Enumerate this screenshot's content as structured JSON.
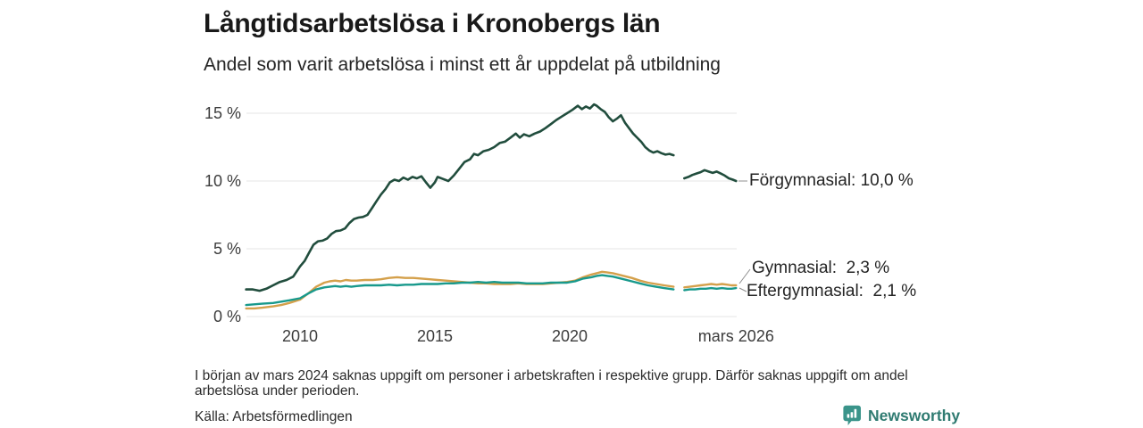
{
  "header": {
    "title": "Långtidsarbetslösa i Kronobergs län",
    "subtitle": "Andel som varit arbetslösa i minst ett år uppdelat på utbildning"
  },
  "footer": {
    "note": "I början av mars 2024 saknas uppgift om personer i arbetskraften i respektive grupp. Därför saknas uppgift om andel arbetslösa under perioden.",
    "source": "Källa: Arbetsförmedlingen"
  },
  "branding": {
    "name": "Newsworthy",
    "icon": "newsworthy-bubble-barchart-icon",
    "text_color": "#2f7b71",
    "icon_color": "#3a948a"
  },
  "chart_data": {
    "type": "line",
    "title": "Långtidsarbetslösa i Kronobergs län",
    "subtitle": "Andel som varit arbetslösa i minst ett år uppdelat på utbildning",
    "unit": "%",
    "grid": "horizontal-only",
    "legend_position": "right-of-line-ends",
    "data_gap_note": "values missing around March 2024",
    "x_axis": {
      "label": "",
      "range_years": [
        2008.0,
        2026.25
      ],
      "ticks": [
        {
          "label": "2010",
          "year": 2010
        },
        {
          "label": "2015",
          "year": 2015
        },
        {
          "label": "2020",
          "year": 2020
        },
        {
          "label": "mars 2026",
          "year": 2026.17
        }
      ]
    },
    "y_axis": {
      "label": "",
      "range": [
        0,
        16
      ],
      "ticks": [
        {
          "label": "0 %",
          "value": 0
        },
        {
          "label": "5 %",
          "value": 5
        },
        {
          "label": "10 %",
          "value": 10
        },
        {
          "label": "15 %",
          "value": 15
        }
      ]
    },
    "series": [
      {
        "id": "forgymnasial",
        "name": "Förgymnasial",
        "end_value_label": "10,0 %",
        "display_label": "Förgymnasial: 10,0 %",
        "color": "#214d3d",
        "width": 2.6,
        "points": [
          [
            2008.0,
            2.0
          ],
          [
            2008.25,
            2.0
          ],
          [
            2008.5,
            1.9
          ],
          [
            2008.75,
            2.05
          ],
          [
            2009.0,
            2.3
          ],
          [
            2009.25,
            2.55
          ],
          [
            2009.5,
            2.7
          ],
          [
            2009.75,
            2.95
          ],
          [
            2010.0,
            3.7
          ],
          [
            2010.17,
            4.1
          ],
          [
            2010.33,
            4.7
          ],
          [
            2010.5,
            5.3
          ],
          [
            2010.67,
            5.55
          ],
          [
            2010.83,
            5.6
          ],
          [
            2011.0,
            5.75
          ],
          [
            2011.17,
            6.1
          ],
          [
            2011.33,
            6.3
          ],
          [
            2011.5,
            6.35
          ],
          [
            2011.67,
            6.5
          ],
          [
            2011.83,
            6.9
          ],
          [
            2012.0,
            7.2
          ],
          [
            2012.17,
            7.3
          ],
          [
            2012.33,
            7.35
          ],
          [
            2012.5,
            7.5
          ],
          [
            2012.67,
            8.0
          ],
          [
            2012.83,
            8.5
          ],
          [
            2013.0,
            9.0
          ],
          [
            2013.17,
            9.4
          ],
          [
            2013.33,
            9.9
          ],
          [
            2013.5,
            10.1
          ],
          [
            2013.67,
            10.0
          ],
          [
            2013.83,
            10.25
          ],
          [
            2014.0,
            10.1
          ],
          [
            2014.17,
            10.3
          ],
          [
            2014.33,
            10.2
          ],
          [
            2014.5,
            10.35
          ],
          [
            2014.67,
            9.9
          ],
          [
            2014.83,
            9.5
          ],
          [
            2015.0,
            9.9
          ],
          [
            2015.1,
            10.3
          ],
          [
            2015.3,
            10.15
          ],
          [
            2015.5,
            10.0
          ],
          [
            2015.7,
            10.4
          ],
          [
            2015.9,
            10.9
          ],
          [
            2016.1,
            11.4
          ],
          [
            2016.3,
            11.6
          ],
          [
            2016.45,
            12.0
          ],
          [
            2016.6,
            11.9
          ],
          [
            2016.8,
            12.2
          ],
          [
            2017.0,
            12.3
          ],
          [
            2017.2,
            12.5
          ],
          [
            2017.4,
            12.8
          ],
          [
            2017.6,
            12.9
          ],
          [
            2017.8,
            13.2
          ],
          [
            2018.0,
            13.5
          ],
          [
            2018.15,
            13.2
          ],
          [
            2018.3,
            13.45
          ],
          [
            2018.5,
            13.3
          ],
          [
            2018.7,
            13.5
          ],
          [
            2018.9,
            13.65
          ],
          [
            2019.1,
            13.9
          ],
          [
            2019.3,
            14.2
          ],
          [
            2019.5,
            14.5
          ],
          [
            2019.7,
            14.75
          ],
          [
            2019.9,
            15.0
          ],
          [
            2020.1,
            15.25
          ],
          [
            2020.3,
            15.55
          ],
          [
            2020.45,
            15.3
          ],
          [
            2020.6,
            15.5
          ],
          [
            2020.75,
            15.35
          ],
          [
            2020.9,
            15.65
          ],
          [
            2021.0,
            15.55
          ],
          [
            2021.15,
            15.3
          ],
          [
            2021.3,
            15.1
          ],
          [
            2021.45,
            14.7
          ],
          [
            2021.6,
            14.4
          ],
          [
            2021.75,
            14.6
          ],
          [
            2021.9,
            14.85
          ],
          [
            2022.05,
            14.3
          ],
          [
            2022.2,
            13.9
          ],
          [
            2022.35,
            13.5
          ],
          [
            2022.5,
            13.2
          ],
          [
            2022.65,
            12.9
          ],
          [
            2022.8,
            12.5
          ],
          [
            2022.95,
            12.25
          ],
          [
            2023.1,
            12.1
          ],
          [
            2023.25,
            12.2
          ],
          [
            2023.4,
            12.05
          ],
          [
            2023.55,
            11.95
          ],
          [
            2023.7,
            12.0
          ],
          [
            2023.85,
            11.9
          ],
          null,
          [
            2024.25,
            10.2
          ],
          [
            2024.4,
            10.3
          ],
          [
            2024.55,
            10.45
          ],
          [
            2024.7,
            10.55
          ],
          [
            2024.85,
            10.65
          ],
          [
            2025.0,
            10.8
          ],
          [
            2025.15,
            10.7
          ],
          [
            2025.3,
            10.6
          ],
          [
            2025.45,
            10.7
          ],
          [
            2025.6,
            10.55
          ],
          [
            2025.75,
            10.4
          ],
          [
            2025.9,
            10.2
          ],
          [
            2026.05,
            10.1
          ],
          [
            2026.17,
            10.0
          ]
        ]
      },
      {
        "id": "gymnasial",
        "name": "Gymnasial",
        "end_value_label": "2,3 %",
        "display_label": "Gymnasial:  2,3 %",
        "color": "#d4a04b",
        "width": 2.4,
        "points": [
          [
            2008.0,
            0.6
          ],
          [
            2008.3,
            0.6
          ],
          [
            2008.6,
            0.65
          ],
          [
            2009.0,
            0.75
          ],
          [
            2009.3,
            0.85
          ],
          [
            2009.6,
            1.0
          ],
          [
            2010.0,
            1.25
          ],
          [
            2010.3,
            1.7
          ],
          [
            2010.6,
            2.2
          ],
          [
            2010.9,
            2.5
          ],
          [
            2011.1,
            2.6
          ],
          [
            2011.3,
            2.65
          ],
          [
            2011.5,
            2.6
          ],
          [
            2011.7,
            2.7
          ],
          [
            2011.9,
            2.65
          ],
          [
            2012.1,
            2.65
          ],
          [
            2012.4,
            2.7
          ],
          [
            2012.7,
            2.7
          ],
          [
            2013.0,
            2.75
          ],
          [
            2013.3,
            2.85
          ],
          [
            2013.6,
            2.9
          ],
          [
            2013.9,
            2.85
          ],
          [
            2014.2,
            2.85
          ],
          [
            2014.5,
            2.8
          ],
          [
            2014.8,
            2.75
          ],
          [
            2015.1,
            2.7
          ],
          [
            2015.4,
            2.65
          ],
          [
            2015.7,
            2.6
          ],
          [
            2016.0,
            2.55
          ],
          [
            2016.3,
            2.5
          ],
          [
            2016.6,
            2.45
          ],
          [
            2016.9,
            2.45
          ],
          [
            2017.2,
            2.4
          ],
          [
            2017.5,
            2.4
          ],
          [
            2017.8,
            2.4
          ],
          [
            2018.1,
            2.45
          ],
          [
            2018.4,
            2.4
          ],
          [
            2018.7,
            2.4
          ],
          [
            2019.0,
            2.4
          ],
          [
            2019.3,
            2.45
          ],
          [
            2019.6,
            2.5
          ],
          [
            2019.9,
            2.55
          ],
          [
            2020.2,
            2.65
          ],
          [
            2020.5,
            2.9
          ],
          [
            2020.8,
            3.1
          ],
          [
            2021.0,
            3.2
          ],
          [
            2021.2,
            3.3
          ],
          [
            2021.4,
            3.25
          ],
          [
            2021.6,
            3.2
          ],
          [
            2021.8,
            3.1
          ],
          [
            2022.0,
            3.0
          ],
          [
            2022.3,
            2.85
          ],
          [
            2022.6,
            2.65
          ],
          [
            2022.9,
            2.5
          ],
          [
            2023.2,
            2.4
          ],
          [
            2023.5,
            2.3
          ],
          [
            2023.85,
            2.2
          ],
          null,
          [
            2024.25,
            2.15
          ],
          [
            2024.45,
            2.2
          ],
          [
            2024.65,
            2.25
          ],
          [
            2024.85,
            2.3
          ],
          [
            2025.05,
            2.35
          ],
          [
            2025.25,
            2.4
          ],
          [
            2025.45,
            2.35
          ],
          [
            2025.65,
            2.4
          ],
          [
            2025.85,
            2.35
          ],
          [
            2026.0,
            2.3
          ],
          [
            2026.17,
            2.3
          ]
        ]
      },
      {
        "id": "eftergymnasial",
        "name": "Eftergymnasial",
        "end_value_label": "2,1 %",
        "display_label": "Eftergymnasial:  2,1 %",
        "color": "#18998c",
        "width": 2.4,
        "points": [
          [
            2008.0,
            0.85
          ],
          [
            2008.3,
            0.9
          ],
          [
            2008.6,
            0.95
          ],
          [
            2009.0,
            1.0
          ],
          [
            2009.3,
            1.1
          ],
          [
            2009.6,
            1.2
          ],
          [
            2010.0,
            1.35
          ],
          [
            2010.3,
            1.7
          ],
          [
            2010.6,
            2.0
          ],
          [
            2010.9,
            2.15
          ],
          [
            2011.1,
            2.2
          ],
          [
            2011.3,
            2.25
          ],
          [
            2011.5,
            2.2
          ],
          [
            2011.7,
            2.25
          ],
          [
            2011.9,
            2.2
          ],
          [
            2012.1,
            2.25
          ],
          [
            2012.4,
            2.3
          ],
          [
            2012.7,
            2.3
          ],
          [
            2013.0,
            2.3
          ],
          [
            2013.3,
            2.35
          ],
          [
            2013.6,
            2.3
          ],
          [
            2013.9,
            2.35
          ],
          [
            2014.2,
            2.35
          ],
          [
            2014.5,
            2.4
          ],
          [
            2014.8,
            2.4
          ],
          [
            2015.1,
            2.4
          ],
          [
            2015.4,
            2.45
          ],
          [
            2015.7,
            2.45
          ],
          [
            2016.0,
            2.5
          ],
          [
            2016.3,
            2.5
          ],
          [
            2016.6,
            2.55
          ],
          [
            2016.9,
            2.5
          ],
          [
            2017.2,
            2.55
          ],
          [
            2017.5,
            2.5
          ],
          [
            2017.8,
            2.5
          ],
          [
            2018.1,
            2.5
          ],
          [
            2018.4,
            2.45
          ],
          [
            2018.7,
            2.45
          ],
          [
            2019.0,
            2.45
          ],
          [
            2019.3,
            2.5
          ],
          [
            2019.6,
            2.5
          ],
          [
            2019.9,
            2.5
          ],
          [
            2020.2,
            2.6
          ],
          [
            2020.5,
            2.8
          ],
          [
            2020.8,
            2.9
          ],
          [
            2021.0,
            3.0
          ],
          [
            2021.2,
            3.05
          ],
          [
            2021.4,
            3.0
          ],
          [
            2021.6,
            2.95
          ],
          [
            2021.8,
            2.85
          ],
          [
            2022.0,
            2.75
          ],
          [
            2022.3,
            2.6
          ],
          [
            2022.6,
            2.45
          ],
          [
            2022.9,
            2.3
          ],
          [
            2023.2,
            2.2
          ],
          [
            2023.5,
            2.1
          ],
          [
            2023.85,
            2.0
          ],
          null,
          [
            2024.25,
            1.95
          ],
          [
            2024.45,
            2.0
          ],
          [
            2024.65,
            2.0
          ],
          [
            2024.85,
            2.05
          ],
          [
            2025.05,
            2.05
          ],
          [
            2025.25,
            2.1
          ],
          [
            2025.45,
            2.05
          ],
          [
            2025.65,
            2.1
          ],
          [
            2025.85,
            2.05
          ],
          [
            2026.0,
            2.05
          ],
          [
            2026.17,
            2.1
          ]
        ]
      }
    ]
  }
}
